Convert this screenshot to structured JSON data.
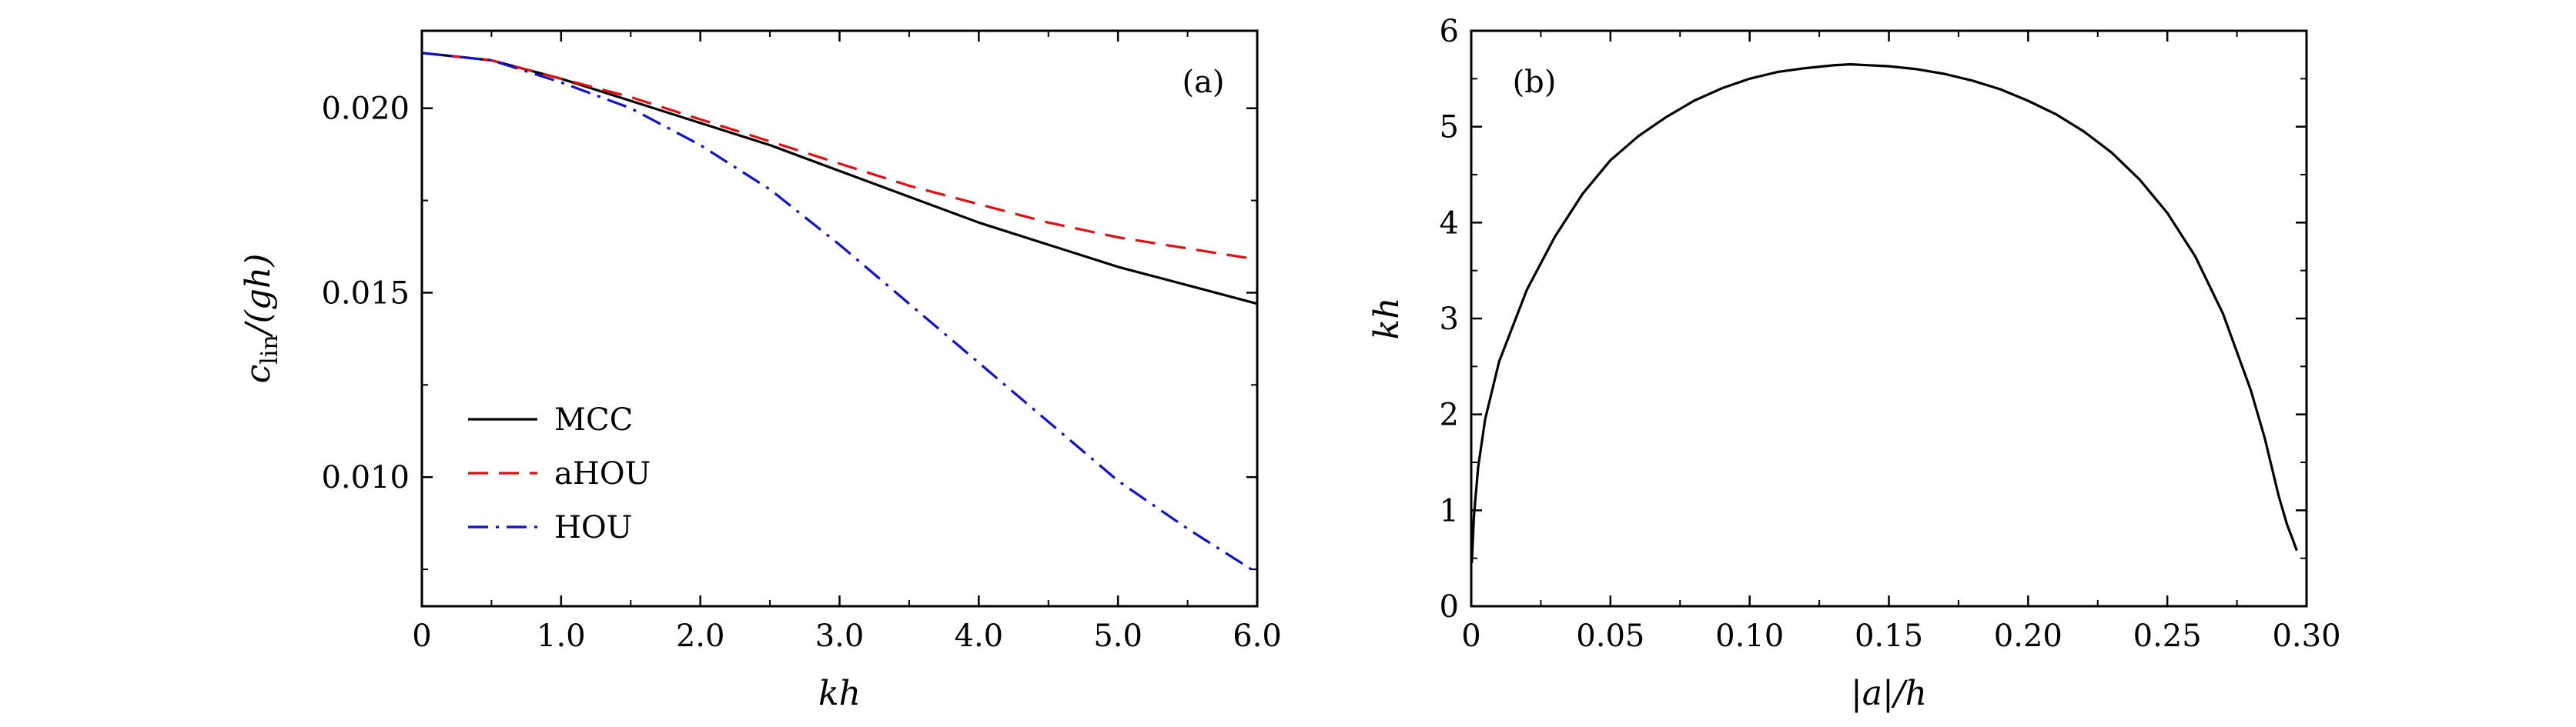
{
  "chart_data": [
    {
      "type": "line",
      "panel_label": "(a)",
      "xlabel": "kh",
      "ylabel_main": "c",
      "ylabel_sub": "lin",
      "ylabel_rest": "/(gh)",
      "xlim": [
        0,
        6
      ],
      "ylim": [
        0.0065,
        0.0221
      ],
      "x_ticks": [
        0,
        1,
        2,
        3,
        4,
        5,
        6
      ],
      "x_tick_labels": [
        "0",
        "1.0",
        "2.0",
        "3.0",
        "4.0",
        "5.0",
        "6.0"
      ],
      "y_ticks": [
        0.01,
        0.015,
        0.02
      ],
      "y_tick_labels": [
        "0.010",
        "0.015",
        "0.020"
      ],
      "legend_position": "lower-left",
      "series": [
        {
          "name": "MCC",
          "color": "#000000",
          "dash": "solid",
          "x": [
            0,
            0.5,
            1.0,
            1.5,
            2.0,
            2.5,
            3.0,
            3.5,
            4.0,
            4.5,
            5.0,
            5.5,
            6.0
          ],
          "y": [
            0.0215,
            0.0213,
            0.0208,
            0.0202,
            0.0196,
            0.019,
            0.0183,
            0.0176,
            0.0169,
            0.0163,
            0.0157,
            0.0152,
            0.0147
          ]
        },
        {
          "name": "aHOU",
          "color": "#e01010",
          "dash": "dashed",
          "x": [
            0,
            0.5,
            1.0,
            1.5,
            2.0,
            2.5,
            3.0,
            3.5,
            4.0,
            4.5,
            5.0,
            5.5,
            6.0
          ],
          "y": [
            0.0215,
            0.0213,
            0.0208,
            0.0203,
            0.0197,
            0.0191,
            0.0185,
            0.0179,
            0.0174,
            0.0169,
            0.0165,
            0.0162,
            0.0159
          ]
        },
        {
          "name": "HOU",
          "color": "#1010d0",
          "dash": "dash-dot",
          "x": [
            0,
            0.5,
            1.0,
            1.5,
            2.0,
            2.5,
            3.0,
            3.5,
            4.0,
            4.5,
            5.0,
            5.5,
            6.0
          ],
          "y": [
            0.0215,
            0.0213,
            0.0207,
            0.02,
            0.019,
            0.0178,
            0.0163,
            0.0147,
            0.0131,
            0.0115,
            0.0099,
            0.0086,
            0.0074
          ]
        }
      ]
    },
    {
      "type": "line",
      "panel_label": "(b)",
      "xlabel": "|a|/h",
      "ylabel": "kh",
      "xlim": [
        0,
        0.3
      ],
      "ylim": [
        0,
        6
      ],
      "x_ticks": [
        0,
        0.05,
        0.1,
        0.15,
        0.2,
        0.25,
        0.3
      ],
      "x_tick_labels": [
        "0",
        "0.05",
        "0.10",
        "0.15",
        "0.20",
        "0.25",
        "0.30"
      ],
      "y_ticks": [
        0,
        1,
        2,
        3,
        4,
        5,
        6
      ],
      "y_tick_labels": [
        "0",
        "1",
        "2",
        "3",
        "4",
        "5",
        "6"
      ],
      "series": [
        {
          "color": "#000000",
          "dash": "solid",
          "x": [
            0.0002,
            0.001,
            0.0025,
            0.005,
            0.01,
            0.02,
            0.03,
            0.04,
            0.05,
            0.06,
            0.07,
            0.08,
            0.09,
            0.1,
            0.11,
            0.12,
            0.13,
            0.136,
            0.14,
            0.15,
            0.16,
            0.17,
            0.18,
            0.19,
            0.2,
            0.21,
            0.22,
            0.23,
            0.24,
            0.25,
            0.26,
            0.27,
            0.28,
            0.285,
            0.29,
            0.293,
            0.295,
            0.296,
            0.2965
          ],
          "y": [
            0.45,
            0.95,
            1.45,
            1.95,
            2.55,
            3.3,
            3.85,
            4.3,
            4.65,
            4.9,
            5.1,
            5.27,
            5.4,
            5.5,
            5.57,
            5.61,
            5.64,
            5.65,
            5.645,
            5.63,
            5.6,
            5.55,
            5.48,
            5.39,
            5.27,
            5.13,
            4.95,
            4.73,
            4.45,
            4.1,
            3.65,
            3.05,
            2.25,
            1.75,
            1.15,
            0.85,
            0.7,
            0.62,
            0.58
          ]
        }
      ]
    }
  ]
}
